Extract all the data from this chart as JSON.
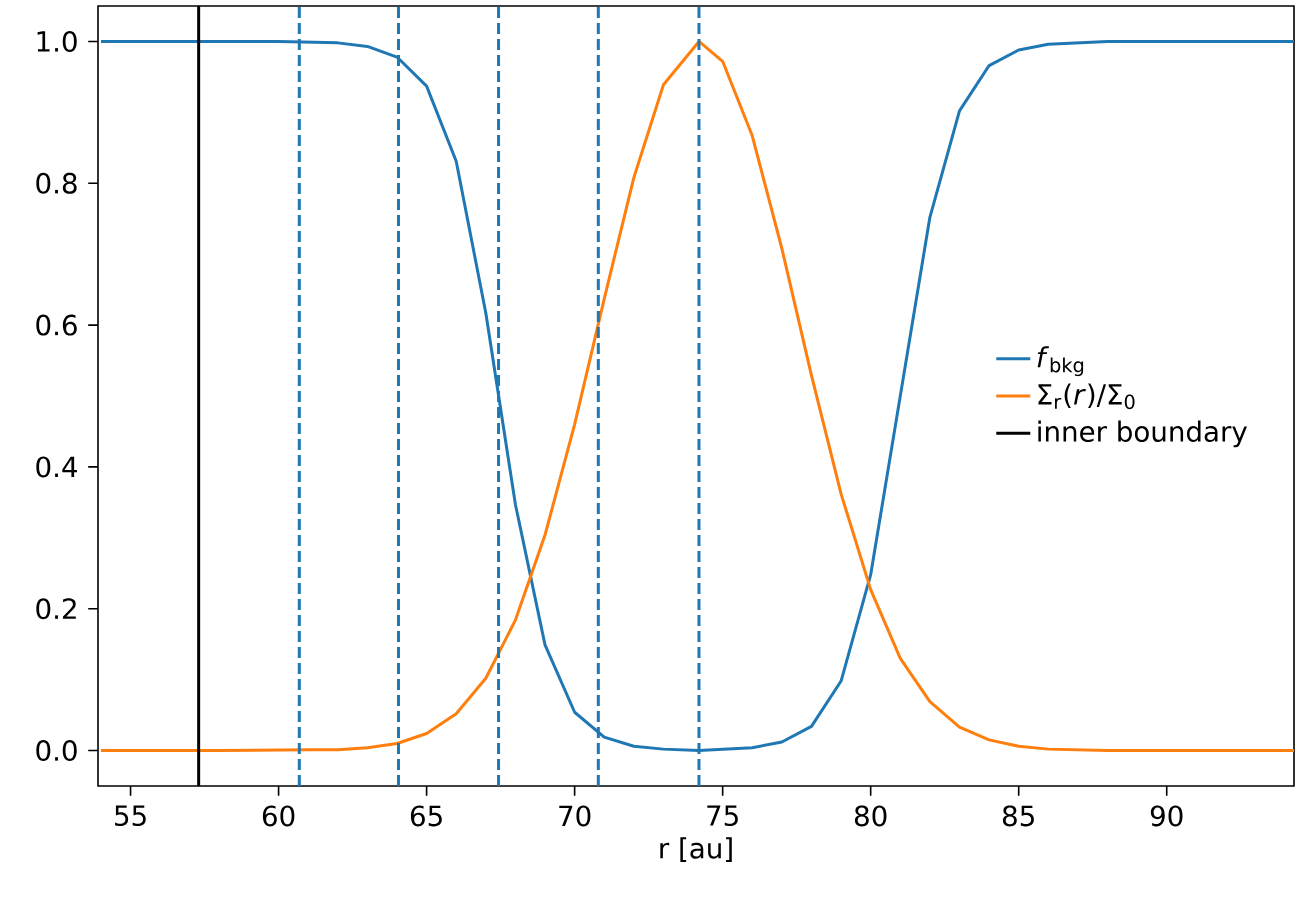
{
  "chart_data": {
    "type": "line",
    "xlabel": "r [au]",
    "series": [
      {
        "name": "*f*$_{bkg}$",
        "color": "#1f77b4",
        "x": [
          54,
          60,
          62,
          63,
          64,
          65,
          66,
          67,
          68,
          69,
          70,
          71,
          72,
          73,
          74.2,
          76,
          77,
          78,
          79,
          80,
          81,
          82,
          83,
          84,
          85,
          86,
          88,
          94.3
        ],
        "values": [
          1,
          1,
          0.998,
          0.993,
          0.978,
          0.937,
          0.831,
          0.617,
          0.347,
          0.149,
          0.054,
          0.019,
          0.006,
          0.002,
          0,
          0.004,
          0.012,
          0.034,
          0.098,
          0.248,
          0.5,
          0.752,
          0.902,
          0.966,
          0.988,
          0.996,
          1,
          1
        ]
      },
      {
        "name": "Σ$_{r}$(*r*)/Σ$_{0}$",
        "color": "#ff7f0e",
        "x": [
          54,
          58,
          61,
          62,
          63,
          64,
          65,
          66,
          67,
          68,
          69,
          70,
          71,
          72,
          73,
          74.2,
          75,
          76,
          77,
          78,
          79,
          80,
          81,
          82,
          83,
          84,
          85,
          86,
          88,
          94.3
        ],
        "values": [
          0,
          0,
          0.001,
          0.001,
          0.004,
          0.01,
          0.024,
          0.052,
          0.102,
          0.184,
          0.304,
          0.46,
          0.637,
          0.808,
          0.939,
          1,
          0.972,
          0.867,
          0.708,
          0.529,
          0.362,
          0.227,
          0.13,
          0.069,
          0.033,
          0.015,
          0.006,
          0.002,
          0,
          0
        ]
      },
      {
        "name": "inner boundary",
        "color": "#000000",
        "x": [
          57.3,
          57.3
        ],
        "values": [
          -0.05,
          1.05
        ]
      }
    ],
    "ref_lines": [
      {
        "axis": "x",
        "value": 60.7,
        "color": "#1f77b4",
        "line_style": "dashed"
      },
      {
        "axis": "x",
        "value": 64.05,
        "color": "#1f77b4",
        "line_style": "dashed"
      },
      {
        "axis": "x",
        "value": 67.43,
        "color": "#1f77b4",
        "line_style": "dashed"
      },
      {
        "axis": "x",
        "value": 70.8,
        "color": "#1f77b4",
        "line_style": "dashed"
      },
      {
        "axis": "x",
        "value": 74.2,
        "color": "#1f77b4",
        "line_style": "dashed"
      }
    ],
    "xlim": [
      53.9,
      94.3
    ],
    "ylim": [
      -0.05,
      1.05
    ],
    "xticks": [
      55,
      60,
      65,
      70,
      75,
      80,
      85,
      90
    ],
    "yticks": [
      {
        "value": 0,
        "label": "0.0"
      },
      {
        "value": 0.2,
        "label": "0.2"
      },
      {
        "value": 0.4,
        "label": "0.4"
      },
      {
        "value": 0.6,
        "label": "0.6"
      },
      {
        "value": 0.8,
        "label": "0.8"
      },
      {
        "value": 1,
        "label": "1.0"
      }
    ],
    "legend": "right",
    "grid": false,
    "marker": "none",
    "line_style": "solid"
  }
}
